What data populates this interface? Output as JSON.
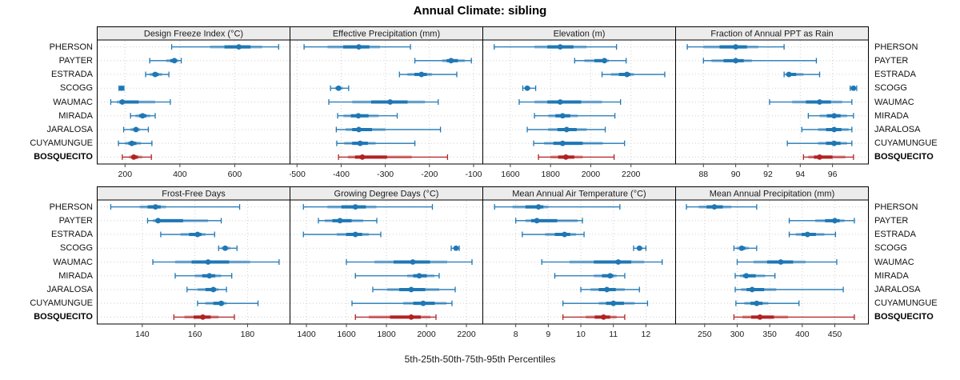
{
  "title": "Annual Climate: sibling",
  "footer": "5th-25th-50th-75th-95th Percentiles",
  "categories": [
    "PHERSON",
    "PAYTER",
    "ESTRADA",
    "SCOGG",
    "WAUMAC",
    "MIRADA",
    "JARALOSA",
    "CUYAMUNGUE",
    "BOSQUECITO"
  ],
  "highlight_category": "BOSQUECITO",
  "colors": {
    "series": "#1f77b4",
    "highlight": "#b22222",
    "grid": "#cfcfcf",
    "strip_bg": "#ececec",
    "border": "#000000",
    "tick_text": "#1a1a1a"
  },
  "chart_data": [
    {
      "type": "dot-interval",
      "title": "Design Freeze Index (°C)",
      "xlim": [
        100,
        800
      ],
      "ticks": [
        200,
        400,
        600
      ],
      "percentiles": [
        "p5",
        "p25",
        "p50",
        "p75",
        "p95"
      ],
      "series": [
        {
          "name": "PHERSON",
          "values": [
            370,
            510,
            615,
            700,
            760
          ]
        },
        {
          "name": "PAYTER",
          "values": [
            290,
            350,
            380,
            395,
            405
          ]
        },
        {
          "name": "ESTRADA",
          "values": [
            275,
            290,
            310,
            335,
            360
          ]
        },
        {
          "name": "SCOGG",
          "values": [
            178,
            183,
            187,
            191,
            196
          ]
        },
        {
          "name": "WAUMAC",
          "values": [
            148,
            170,
            190,
            310,
            365
          ]
        },
        {
          "name": "MIRADA",
          "values": [
            220,
            238,
            264,
            292,
            310
          ]
        },
        {
          "name": "JARALOSA",
          "values": [
            195,
            220,
            240,
            255,
            285
          ]
        },
        {
          "name": "CUYAMUNGUE",
          "values": [
            176,
            200,
            225,
            258,
            298
          ]
        },
        {
          "name": "BOSQUECITO",
          "values": [
            190,
            215,
            232,
            262,
            296
          ]
        }
      ]
    },
    {
      "type": "dot-interval",
      "title": "Effective Precipitation (mm)",
      "xlim": [
        -515,
        -80
      ],
      "ticks": [
        -500,
        -400,
        -300,
        -200,
        -100
      ],
      "percentiles": [
        "p5",
        "p25",
        "p50",
        "p75",
        "p95"
      ],
      "series": [
        {
          "name": "PHERSON",
          "values": [
            -484,
            -431,
            -360,
            -312,
            -243
          ]
        },
        {
          "name": "PAYTER",
          "values": [
            -233,
            -171,
            -151,
            -120,
            -105
          ]
        },
        {
          "name": "ESTRADA",
          "values": [
            -268,
            -250,
            -218,
            -194,
            -138
          ]
        },
        {
          "name": "SCOGG",
          "values": [
            -424,
            -414,
            -406,
            -396,
            -383
          ]
        },
        {
          "name": "WAUMAC",
          "values": [
            -428,
            -375,
            -289,
            -210,
            -180
          ]
        },
        {
          "name": "MIRADA",
          "values": [
            -408,
            -395,
            -361,
            -315,
            -273
          ]
        },
        {
          "name": "JARALOSA",
          "values": [
            -411,
            -390,
            -360,
            -300,
            -175
          ]
        },
        {
          "name": "CUYAMUNGUE",
          "values": [
            -410,
            -393,
            -357,
            -322,
            -233
          ]
        },
        {
          "name": "BOSQUECITO",
          "values": [
            -406,
            -385,
            -352,
            -240,
            -159
          ]
        }
      ]
    },
    {
      "type": "dot-interval",
      "title": "Elevation (m)",
      "xlim": [
        1465,
        2420
      ],
      "ticks": [
        1600,
        1800,
        2000,
        2200
      ],
      "percentiles": [
        "p5",
        "p25",
        "p50",
        "p75",
        "p95"
      ],
      "series": [
        {
          "name": "PHERSON",
          "values": [
            1520,
            1720,
            1848,
            1980,
            2128
          ]
        },
        {
          "name": "PAYTER",
          "values": [
            1920,
            1968,
            2068,
            2090,
            2176
          ]
        },
        {
          "name": "ESTRADA",
          "values": [
            2056,
            2100,
            2180,
            2215,
            2368
          ]
        },
        {
          "name": "SCOGG",
          "values": [
            1662,
            1672,
            1684,
            1700,
            1726
          ]
        },
        {
          "name": "WAUMAC",
          "values": [
            1644,
            1720,
            1848,
            2056,
            2148
          ]
        },
        {
          "name": "MIRADA",
          "values": [
            1720,
            1788,
            1860,
            1936,
            2120
          ]
        },
        {
          "name": "JARALOSA",
          "values": [
            1684,
            1788,
            1880,
            1980,
            2072
          ]
        },
        {
          "name": "CUYAMUNGUE",
          "values": [
            1716,
            1768,
            1860,
            2060,
            2168
          ]
        },
        {
          "name": "BOSQUECITO",
          "values": [
            1740,
            1800,
            1876,
            1960,
            2116
          ]
        }
      ]
    },
    {
      "type": "dot-interval",
      "title": "Fraction of Annual PPT as Rain",
      "xlim": [
        86.3,
        98.2
      ],
      "ticks": [
        88,
        90,
        92,
        94,
        96
      ],
      "percentiles": [
        "p5",
        "p25",
        "p50",
        "p75",
        "p95"
      ],
      "series": [
        {
          "name": "PHERSON",
          "values": [
            87,
            88,
            90,
            91.4,
            93
          ]
        },
        {
          "name": "PAYTER",
          "values": [
            88,
            88.5,
            90,
            91,
            95
          ]
        },
        {
          "name": "ESTRADA",
          "values": [
            93,
            93.1,
            93.3,
            94.2,
            95.2
          ]
        },
        {
          "name": "SCOGG",
          "values": [
            97.1,
            97.2,
            97.3,
            97.4,
            97.5
          ]
        },
        {
          "name": "WAUMAC",
          "values": [
            92.1,
            93.5,
            95.2,
            96.6,
            97.2
          ]
        },
        {
          "name": "MIRADA",
          "values": [
            94.5,
            95.2,
            96.1,
            96.9,
            97.3
          ]
        },
        {
          "name": "JARALOSA",
          "values": [
            94.1,
            95.1,
            96.1,
            97,
            97.2
          ]
        },
        {
          "name": "CUYAMUNGUE",
          "values": [
            93.2,
            95.1,
            96.1,
            96.9,
            97.2
          ]
        },
        {
          "name": "BOSQUECITO",
          "values": [
            94.2,
            94.5,
            95.2,
            96.8,
            97.3
          ]
        }
      ]
    },
    {
      "type": "dot-interval",
      "title": "Frost-Free Days",
      "xlim": [
        123,
        196
      ],
      "ticks": [
        140,
        160,
        180
      ],
      "percentiles": [
        "p5",
        "p25",
        "p50",
        "p75",
        "p95"
      ],
      "series": [
        {
          "name": "PHERSON",
          "values": [
            128,
            139,
            145,
            149,
            177
          ]
        },
        {
          "name": "PAYTER",
          "values": [
            142,
            144,
            146,
            165,
            170
          ]
        },
        {
          "name": "ESTRADA",
          "values": [
            147,
            154.5,
            161,
            164,
            167.5
          ]
        },
        {
          "name": "SCOGG",
          "values": [
            169,
            170,
            171.5,
            173.5,
            176
          ]
        },
        {
          "name": "WAUMAC",
          "values": [
            144,
            152.5,
            165,
            181,
            192
          ]
        },
        {
          "name": "MIRADA",
          "values": [
            152.5,
            160,
            165.5,
            170,
            174
          ]
        },
        {
          "name": "JARALOSA",
          "values": [
            157,
            161,
            167,
            169,
            172
          ]
        },
        {
          "name": "CUYAMUNGUE",
          "values": [
            161,
            164,
            170,
            172,
            184
          ]
        },
        {
          "name": "BOSQUECITO",
          "values": [
            152,
            156,
            163,
            169,
            175
          ]
        }
      ]
    },
    {
      "type": "dot-interval",
      "title": "Growing Degree Days (°C)",
      "xlim": [
        1320,
        2280
      ],
      "ticks": [
        1400,
        1600,
        1800,
        2000,
        2200
      ],
      "percentiles": [
        "p5",
        "p25",
        "p50",
        "p75",
        "p95"
      ],
      "series": [
        {
          "name": "PHERSON",
          "values": [
            1385,
            1505,
            1645,
            1750,
            2030
          ]
        },
        {
          "name": "PAYTER",
          "values": [
            1460,
            1492,
            1568,
            1684,
            1752
          ]
        },
        {
          "name": "ESTRADA",
          "values": [
            1385,
            1552,
            1645,
            1712,
            1772
          ]
        },
        {
          "name": "SCOGG",
          "values": [
            2124,
            2136,
            2148,
            2156,
            2164
          ]
        },
        {
          "name": "WAUMAC",
          "values": [
            1600,
            1740,
            1932,
            2104,
            2228
          ]
        },
        {
          "name": "MIRADA",
          "values": [
            1645,
            1904,
            1964,
            2040,
            2064
          ]
        },
        {
          "name": "JARALOSA",
          "values": [
            1732,
            1804,
            1924,
            2064,
            2144
          ]
        },
        {
          "name": "CUYAMUNGUE",
          "values": [
            1628,
            1884,
            1984,
            2100,
            2128
          ]
        },
        {
          "name": "BOSQUECITO",
          "values": [
            1645,
            1712,
            1924,
            2020,
            2048
          ]
        }
      ]
    },
    {
      "type": "dot-interval",
      "title": "Mean Annual Air Temperature (°C)",
      "xlim": [
        7.0,
        12.9
      ],
      "ticks": [
        8,
        9,
        10,
        11,
        12
      ],
      "percentiles": [
        "p5",
        "p25",
        "p50",
        "p75",
        "p95"
      ],
      "series": [
        {
          "name": "PHERSON",
          "values": [
            7.35,
            7.9,
            8.7,
            9.0,
            11.2
          ]
        },
        {
          "name": "PAYTER",
          "values": [
            8.0,
            8.3,
            8.65,
            9.9,
            10.05
          ]
        },
        {
          "name": "ESTRADA",
          "values": [
            8.2,
            8.9,
            9.5,
            9.85,
            10.1
          ]
        },
        {
          "name": "SCOGG",
          "values": [
            11.62,
            11.72,
            11.8,
            11.9,
            12.0
          ]
        },
        {
          "name": "WAUMAC",
          "values": [
            8.8,
            9.65,
            11.15,
            11.95,
            12.5
          ]
        },
        {
          "name": "MIRADA",
          "values": [
            9.2,
            10.4,
            10.9,
            11.1,
            11.35
          ]
        },
        {
          "name": "JARALOSA",
          "values": [
            10.0,
            10.3,
            10.8,
            11.35,
            11.8
          ]
        },
        {
          "name": "CUYAMUNGUE",
          "values": [
            9.45,
            10.55,
            11.0,
            11.65,
            12.05
          ]
        },
        {
          "name": "BOSQUECITO",
          "values": [
            9.45,
            10.15,
            10.7,
            11.1,
            11.35
          ]
        }
      ]
    },
    {
      "type": "dot-interval",
      "title": "Mean Annual Precipitation (mm)",
      "xlim": [
        206,
        501
      ],
      "ticks": [
        250,
        300,
        350,
        400,
        450
      ],
      "percentiles": [
        "p5",
        "p25",
        "p50",
        "p75",
        "p95"
      ],
      "series": [
        {
          "name": "PHERSON",
          "values": [
            222,
            241,
            265,
            291,
            330
          ]
        },
        {
          "name": "PAYTER",
          "values": [
            380,
            420,
            450,
            465,
            480
          ]
        },
        {
          "name": "ESTRADA",
          "values": [
            380,
            390,
            408,
            434,
            451
          ]
        },
        {
          "name": "SCOGG",
          "values": [
            295,
            299,
            307,
            318,
            330
          ]
        },
        {
          "name": "WAUMAC",
          "values": [
            300,
            325,
            367,
            405,
            453
          ]
        },
        {
          "name": "MIRADA",
          "values": [
            297,
            304,
            314,
            343,
            358
          ]
        },
        {
          "name": "JARALOSA",
          "values": [
            297,
            306,
            323,
            360,
            463
          ]
        },
        {
          "name": "CUYAMUNGUE",
          "values": [
            298,
            311,
            330,
            348,
            395
          ]
        },
        {
          "name": "BOSQUECITO",
          "values": [
            295,
            308,
            335,
            378,
            480
          ]
        }
      ]
    }
  ]
}
